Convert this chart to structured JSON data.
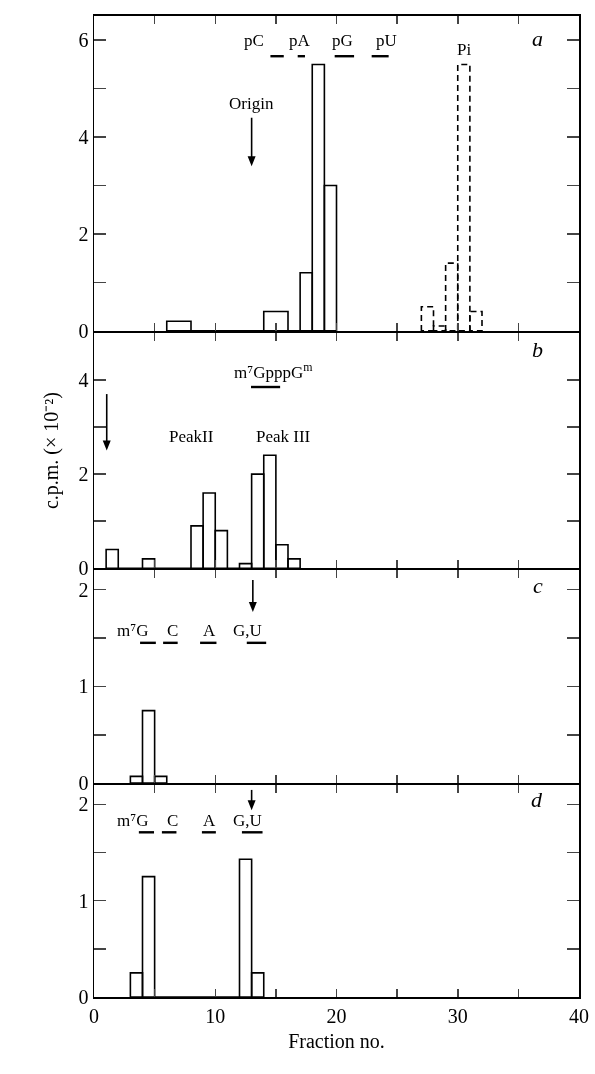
{
  "chart_data": [
    {
      "type": "histogram",
      "title": "a",
      "xlim": [
        0,
        40
      ],
      "xticks": [
        0,
        {
          "value": 5,
          "label": null
        },
        10,
        {
          "value": 15,
          "label": null
        },
        20,
        {
          "value": 25,
          "label": null
        },
        30,
        {
          "value": 35,
          "label": null
        },
        40
      ],
      "ylim": [
        0,
        6.5
      ],
      "yticks": [
        0,
        {
          "value": 1,
          "label": null
        },
        2,
        {
          "value": 3,
          "label": null
        },
        4,
        {
          "value": 5,
          "label": null
        },
        6
      ],
      "tick_labels": "y",
      "bins": [
        6,
        8,
        14,
        16,
        17,
        18,
        19,
        20,
        27,
        28,
        29,
        30,
        31,
        32
      ],
      "series": [
        {
          "color": "#000000",
          "line_style": "solid",
          "values": [
            0.2,
            0,
            0.4,
            0,
            1.2,
            5.5,
            3.0,
            null,
            null,
            null,
            null,
            null,
            null
          ]
        },
        {
          "color": "#000000",
          "line_style": "dashed",
          "values": [
            null,
            null,
            null,
            null,
            null,
            null,
            null,
            null,
            0.5,
            0.1,
            1.4,
            5.5,
            0.4
          ]
        }
      ],
      "annotations": [
        "pC",
        "pA",
        "pG",
        "pU",
        "Pi",
        "Origin"
      ]
    },
    {
      "type": "histogram",
      "title": "b",
      "ylabel": "c.p.m. (× 10⁻²)",
      "xlim": [
        0,
        40
      ],
      "xticks": [
        0,
        {
          "value": 5,
          "label": null
        },
        10,
        {
          "value": 15,
          "label": null
        },
        20,
        {
          "value": 25,
          "label": null
        },
        30,
        {
          "value": 35,
          "label": null
        },
        40
      ],
      "ylim": [
        0,
        5
      ],
      "yticks": [
        0,
        {
          "value": 1,
          "label": null
        },
        2,
        {
          "value": 3,
          "label": null
        },
        4
      ],
      "tick_labels": "y",
      "bins": [
        1,
        2,
        4,
        5,
        8,
        9,
        10,
        11,
        12,
        13,
        14,
        15,
        16,
        17
      ],
      "color": "#000000",
      "line_style": "solid",
      "values": [
        0.4,
        0,
        0.2,
        0,
        0.9,
        1.6,
        0.8,
        0,
        0.1,
        2.0,
        2.4,
        0.5,
        0.2
      ],
      "annotations": [
        "m⁷GpppG$^{m}$",
        "PeakII",
        "Peak III"
      ]
    },
    {
      "type": "histogram",
      "title": "c",
      "xlim": [
        0,
        40
      ],
      "xticks": [
        0,
        {
          "value": 5,
          "label": null
        },
        10,
        {
          "value": 15,
          "label": null
        },
        20,
        {
          "value": 25,
          "label": null
        },
        30,
        {
          "value": 35,
          "label": null
        },
        40
      ],
      "ylim": [
        0,
        2.2
      ],
      "yticks": [
        0,
        {
          "value": 0.5,
          "label": null
        },
        1,
        {
          "value": 1.5,
          "label": null
        },
        2
      ],
      "tick_labels": "y",
      "bins": [
        3,
        4,
        5,
        6
      ],
      "color": "#000000",
      "line_style": "solid",
      "values": [
        0.07,
        0.75,
        0.07
      ],
      "annotations": [
        "m⁷G",
        "C",
        "A",
        "G,U"
      ]
    },
    {
      "type": "histogram",
      "title": "d",
      "xlabel": "Fraction no.",
      "xlim": [
        0,
        40
      ],
      "xticks": [
        0,
        {
          "value": 5,
          "label": null
        },
        10,
        {
          "value": 15,
          "label": null
        },
        20,
        {
          "value": 25,
          "label": null
        },
        30,
        {
          "value": 35,
          "label": null
        },
        40
      ],
      "ylim": [
        0,
        2.2
      ],
      "yticks": [
        0,
        {
          "value": 0.5,
          "label": null
        },
        1,
        {
          "value": 1.5,
          "label": null
        },
        2
      ],
      "bins": [
        3,
        4,
        5,
        12,
        13,
        14
      ],
      "color": "#000000",
      "line_style": "solid",
      "values": [
        0.25,
        1.25,
        0,
        1.43,
        0.25
      ],
      "annotations": [
        "m⁷G",
        "C",
        "A",
        "G,U"
      ]
    }
  ]
}
